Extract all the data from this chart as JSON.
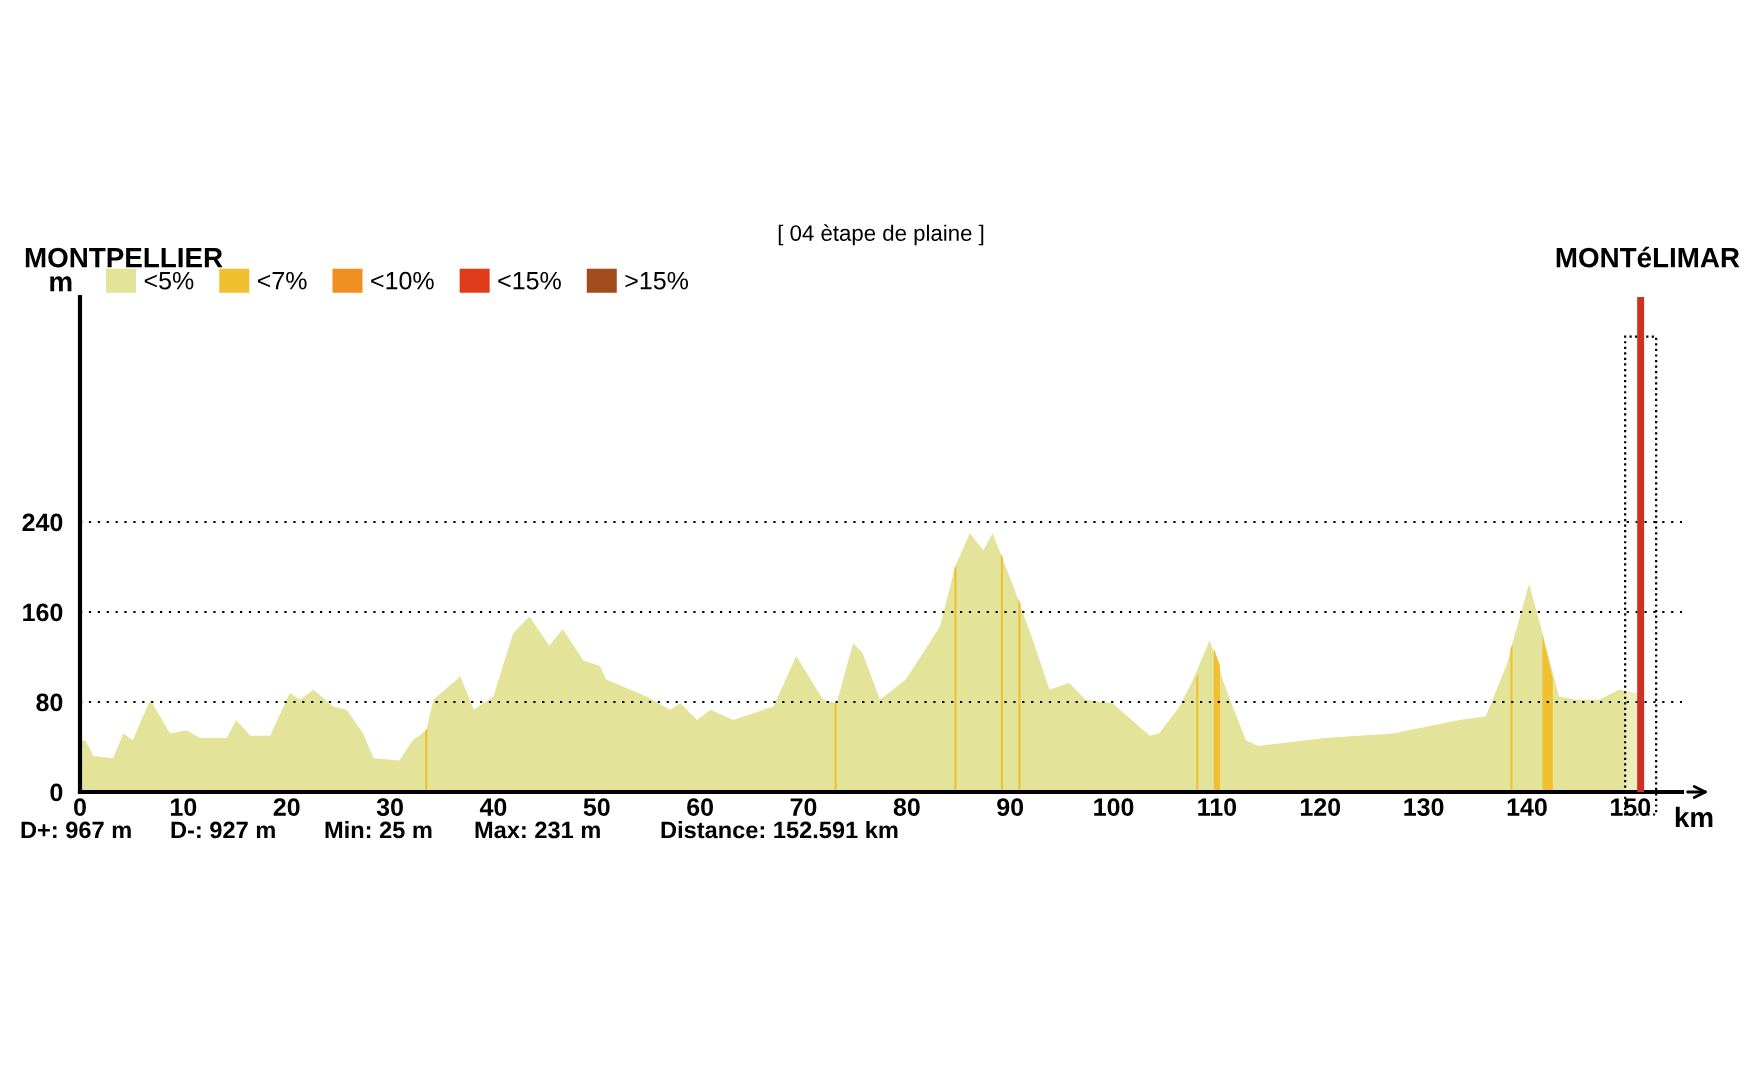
{
  "chart_data": {
    "type": "area",
    "title": "[ 04 ètape de plaine ]",
    "xlabel": "km",
    "ylabel": "m",
    "annotations": [
      "MONTPELLIER",
      "MONTéLIMAR",
      "D+: 967 m",
      "D-: 927 m",
      "Min: 25 m",
      "Max: 231 m",
      "Distance: 152.591 km"
    ],
    "xlim": [
      0,
      155
    ],
    "xticks": [
      0,
      10,
      20,
      30,
      40,
      50,
      60,
      70,
      80,
      90,
      100,
      110,
      120,
      130,
      140,
      150
    ],
    "ylim": [
      0,
      440
    ],
    "yticks": [
      0,
      80,
      160,
      240
    ],
    "grid": "y",
    "legend": "top left",
    "series": [
      {
        "name": "<5%",
        "color": "#e3e39a",
        "x": [
          0,
          0.5,
          1.3,
          3.2,
          4.2,
          5.1,
          6.8,
          8.7,
          10.3,
          11.6,
          14.2,
          15.1,
          16.5,
          18.4,
          20.3,
          21.3,
          22.6,
          24.5,
          25.8,
          27.4,
          28.4,
          30.9,
          32.2,
          33.5,
          34.2,
          36.8,
          38.1,
          40.0,
          41.9,
          43.5,
          45.4,
          46.7,
          48.7,
          50.3,
          50.9,
          54.8,
          57.1,
          58.1,
          59.7,
          61.0,
          63.2,
          67.1,
          69.3,
          71.9,
          73.2,
          74.8,
          75.7,
          77.4,
          79.9,
          83.2,
          84.7,
          86.1,
          87.4,
          88.3,
          90.3,
          92.2,
          93.8,
          95.7,
          97.3,
          99.9,
          103.5,
          104.4,
          106.4,
          107.7,
          109.3,
          110.9,
          112.8,
          114.0,
          120.5,
          127.0,
          133.5,
          136.0,
          138.0,
          140.2,
          141.3,
          143.1,
          144.7,
          147.0,
          148.9,
          150.6,
          151.3
        ],
        "values": [
          45,
          46,
          32,
          30,
          52,
          46,
          82,
          52,
          55,
          48,
          48,
          64,
          50,
          50,
          88,
          82,
          91,
          76,
          73,
          52,
          30,
          28,
          46,
          55,
          82,
          103,
          73,
          85,
          141,
          156,
          130,
          145,
          117,
          112,
          100,
          85,
          73,
          79,
          64,
          73,
          64,
          76,
          121,
          82,
          79,
          132,
          124,
          82,
          100,
          147,
          201,
          230,
          215,
          230,
          183,
          135,
          91,
          97,
          82,
          79,
          50,
          52,
          76,
          100,
          135,
          91,
          46,
          41,
          48,
          52,
          64,
          67,
          112,
          185,
          148,
          85,
          82,
          82,
          91,
          88,
          88
        ]
      },
      {
        "name": "<7%",
        "color": "#f0c030",
        "x": [
          33.4,
          33.6,
          33.7,
          73.0,
          73.2,
          73.3,
          84.6,
          84.8,
          84.9,
          89.1,
          89.3,
          89.4,
          90.8,
          91.0,
          91.1,
          108.0,
          108.2,
          108.3,
          109.7,
          110.3,
          110.4,
          138.4,
          138.6,
          138.7,
          141.5,
          142.5
        ],
        "values": [
          55,
          56,
          null,
          79,
          79,
          null,
          198,
          202,
          null,
          212,
          208,
          null,
          172,
          167,
          null,
          102,
          105,
          null,
          128,
          112,
          null,
          127,
          132,
          null,
          140,
          100
        ]
      },
      {
        "name": "<10%",
        "color": "#f09020"
      },
      {
        "name": "<15%",
        "color": "#e03c1c"
      },
      {
        "name": ">15%",
        "color": "#a04c1c"
      }
    ],
    "ref_lines": [
      {
        "axis": "x",
        "value": 151,
        "color": "#d03020"
      }
    ],
    "bands": [
      {
        "axis": "x",
        "from": 149.5,
        "to": 152.5,
        "color": "#ffffff"
      }
    ]
  }
}
